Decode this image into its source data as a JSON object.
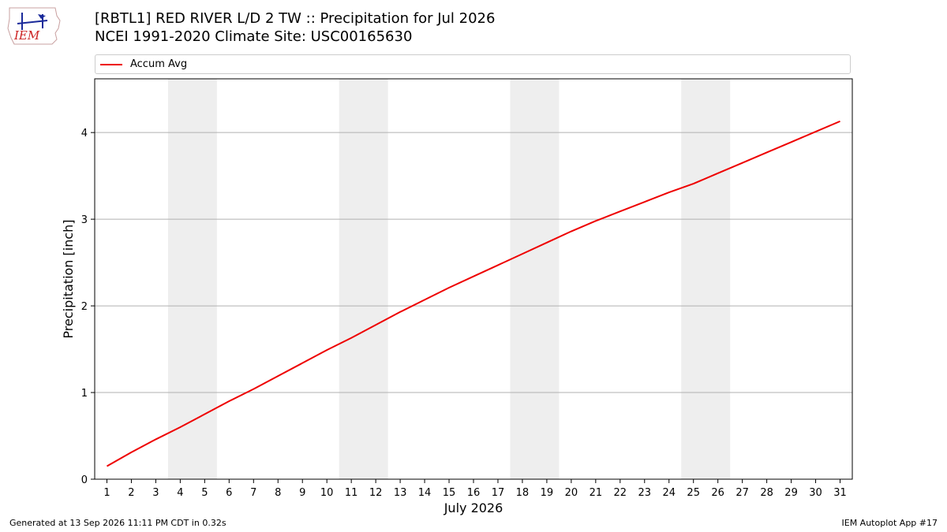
{
  "header": {
    "logo_text": "IEM",
    "title_line1": "[RBTL1] RED RIVER L/D 2 TW :: Precipitation for Jul 2026",
    "title_line2": "NCEI 1991-2020 Climate Site: USC00165630"
  },
  "legend": {
    "accum_avg_label": "Accum Avg"
  },
  "footer": {
    "generated": "Generated at 13 Sep 2026 11:11 PM CDT in 0.32s",
    "app": "IEM Autoplot App #17"
  },
  "colors": {
    "series": "#ee0000",
    "weekend_band": "#eeeeee",
    "grid": "#b0b0b0"
  },
  "chart_data": {
    "type": "line",
    "title": "[RBTL1] RED RIVER L/D 2 TW :: Precipitation for Jul 2026",
    "subtitle": "NCEI 1991-2020 Climate Site: USC00165630",
    "xlabel": "July 2026",
    "ylabel": "Precipitation [inch]",
    "x": [
      1,
      2,
      3,
      4,
      5,
      6,
      7,
      8,
      9,
      10,
      11,
      12,
      13,
      14,
      15,
      16,
      17,
      18,
      19,
      20,
      21,
      22,
      23,
      24,
      25,
      26,
      27,
      28,
      29,
      30,
      31
    ],
    "xticklabels": [
      "1",
      "2",
      "3",
      "4",
      "5",
      "6",
      "7",
      "8",
      "9",
      "10",
      "11",
      "12",
      "13",
      "14",
      "15",
      "16",
      "17",
      "18",
      "19",
      "20",
      "21",
      "22",
      "23",
      "24",
      "25",
      "26",
      "27",
      "28",
      "29",
      "30",
      "31"
    ],
    "yticks": [
      0,
      1,
      2,
      3,
      4
    ],
    "xlim": [
      0.5,
      31.5
    ],
    "ylim": [
      0,
      4.62
    ],
    "grid": "y",
    "legend_position": "top",
    "shaded_weekends": [
      [
        3.5,
        5.5
      ],
      [
        10.5,
        12.5
      ],
      [
        17.5,
        19.5
      ],
      [
        24.5,
        26.5
      ]
    ],
    "series": [
      {
        "name": "Accum Avg",
        "color": "#ee0000",
        "values": [
          0.15,
          0.31,
          0.46,
          0.6,
          0.75,
          0.9,
          1.04,
          1.19,
          1.34,
          1.49,
          1.63,
          1.78,
          1.93,
          2.07,
          2.21,
          2.34,
          2.47,
          2.6,
          2.73,
          2.86,
          2.98,
          3.09,
          3.2,
          3.31,
          3.41,
          3.53,
          3.65,
          3.77,
          3.89,
          4.01,
          4.13
        ]
      }
    ]
  }
}
